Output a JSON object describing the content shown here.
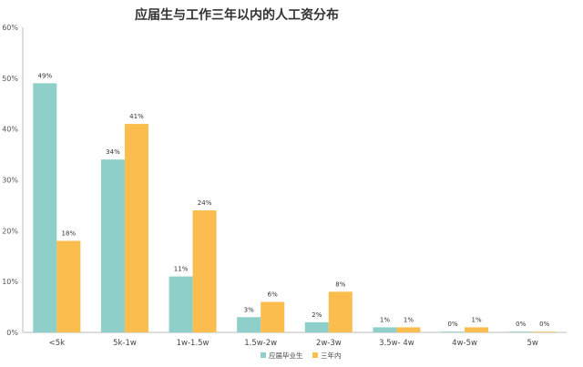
{
  "chart_data": {
    "type": "bar",
    "title": "应届生与工作三年以内的人工资分布",
    "categories": [
      "<5k",
      "5k-1w",
      "1w-1.5w",
      "1.5w-2w",
      "2w-3w",
      "3.5w- 4w",
      "4w-5w",
      "5w"
    ],
    "series": [
      {
        "name": "应届毕业生",
        "color": "#8ecfca",
        "values": [
          49,
          34,
          11,
          3,
          2,
          1,
          0,
          0
        ],
        "labels": [
          "49%",
          "34%",
          "11%",
          "3%",
          "2%",
          "1%",
          "0%",
          "0%"
        ]
      },
      {
        "name": "三年内",
        "color": "#fbbe4e",
        "values": [
          18,
          41,
          24,
          6,
          8,
          1,
          1,
          0
        ],
        "labels": [
          "18%",
          "41%",
          "24%",
          "6%",
          "8%",
          "1%",
          "1%",
          "0%"
        ]
      }
    ],
    "ylim": [
      0,
      60
    ],
    "yticks": [
      "0%",
      "10%",
      "20%",
      "30%",
      "40%",
      "50%",
      "60%"
    ],
    "grid": false,
    "legend": "bottom"
  }
}
